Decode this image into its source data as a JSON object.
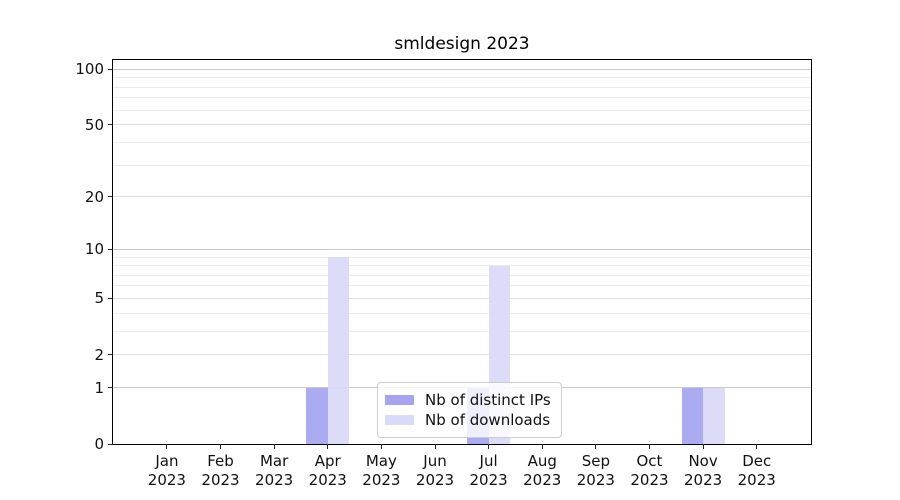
{
  "chart_data": {
    "type": "bar",
    "title": "smldesign 2023",
    "categories": [
      {
        "month": "Jan",
        "year": "2023"
      },
      {
        "month": "Feb",
        "year": "2023"
      },
      {
        "month": "Mar",
        "year": "2023"
      },
      {
        "month": "Apr",
        "year": "2023"
      },
      {
        "month": "May",
        "year": "2023"
      },
      {
        "month": "Jun",
        "year": "2023"
      },
      {
        "month": "Jul",
        "year": "2023"
      },
      {
        "month": "Aug",
        "year": "2023"
      },
      {
        "month": "Sep",
        "year": "2023"
      },
      {
        "month": "Oct",
        "year": "2023"
      },
      {
        "month": "Nov",
        "year": "2023"
      },
      {
        "month": "Dec",
        "year": "2023"
      }
    ],
    "series": [
      {
        "name": "Nb of distinct IPs",
        "color": "#a4a4f0",
        "values": [
          0,
          0,
          0,
          1,
          0,
          0,
          1,
          0,
          0,
          0,
          1,
          0
        ]
      },
      {
        "name": "Nb of downloads",
        "color": "#d9d9f9",
        "values": [
          0,
          0,
          0,
          9,
          0,
          0,
          8,
          0,
          0,
          0,
          1,
          0
        ]
      }
    ],
    "yscale": "log10(1+v)",
    "ylim": [
      0,
      100
    ],
    "yticks": [
      {
        "value": 0,
        "label": "0"
      },
      {
        "value": 1,
        "label": "1"
      },
      {
        "value": 2,
        "label": "2"
      },
      {
        "value": 5,
        "label": "5"
      },
      {
        "value": 10,
        "label": "10"
      },
      {
        "value": 20,
        "label": "20"
      },
      {
        "value": 50,
        "label": "50"
      },
      {
        "value": 100,
        "label": "100"
      }
    ],
    "major_gridlines": [
      1,
      10,
      100
    ],
    "mid_gridlines": [
      2,
      5,
      20,
      50
    ],
    "minor_gridlines": [
      3,
      4,
      6,
      7,
      8,
      9,
      30,
      40,
      60,
      70,
      80,
      90
    ],
    "grid": true,
    "legend_position": "lower center"
  },
  "colors": {
    "background": "#ffffff",
    "axis": "#000000",
    "major_grid": "#c9c9c9",
    "mid_grid": "#dedede",
    "minor_grid": "#ececec",
    "legend_border": "#cccccc",
    "text": "#111111"
  }
}
